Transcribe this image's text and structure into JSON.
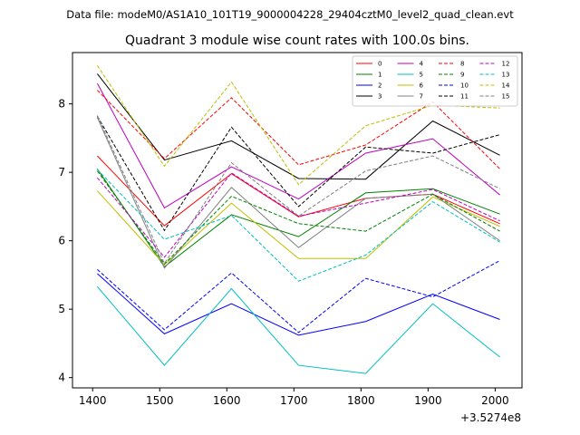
{
  "suptitle": "Data file: modeM0/AS1A10_101T19_9000004228_29404cztM0_level2_quad_clean.evt",
  "chart_data": {
    "type": "line",
    "title": "Quadrant 3 module wise count rates with 100.0s bins.",
    "xlabel": "",
    "ylabel": "",
    "x_offset_label": "+3.5274e8",
    "x": [
      1407,
      1507,
      1607,
      1707,
      1807,
      1907,
      2007
    ],
    "xlim": [
      1370,
      2040
    ],
    "ylim": [
      3.85,
      8.75
    ],
    "x_ticks": [
      1400,
      1500,
      1600,
      1700,
      1800,
      1900,
      2000
    ],
    "y_ticks": [
      4,
      5,
      6,
      7,
      8
    ],
    "grid": false,
    "legend_position": "top-right",
    "legend_columns": 4,
    "series": [
      {
        "name": "0",
        "color": "#ff0000",
        "dash": false,
        "values": [
          7.24,
          6.22,
          6.98,
          6.35,
          6.62,
          6.68,
          6.25
        ]
      },
      {
        "name": "1",
        "color": "#008000",
        "dash": false,
        "values": [
          7.05,
          5.62,
          6.38,
          6.06,
          6.7,
          6.76,
          6.39
        ]
      },
      {
        "name": "2",
        "color": "#0000ff",
        "dash": false,
        "values": [
          5.52,
          4.64,
          5.08,
          4.62,
          4.82,
          5.22,
          4.85
        ]
      },
      {
        "name": "3",
        "color": "#000000",
        "dash": false,
        "values": [
          8.44,
          7.18,
          7.46,
          6.91,
          6.9,
          7.75,
          7.25
        ]
      },
      {
        "name": "4",
        "color": "#bf00bf",
        "dash": false,
        "values": [
          8.3,
          6.48,
          7.08,
          6.61,
          7.28,
          7.49,
          6.67
        ]
      },
      {
        "name": "5",
        "color": "#00bfbf",
        "dash": false,
        "values": [
          5.33,
          4.18,
          5.3,
          4.18,
          4.06,
          5.08,
          4.3
        ]
      },
      {
        "name": "6",
        "color": "#bfbf00",
        "dash": false,
        "values": [
          6.73,
          5.65,
          6.55,
          5.74,
          5.74,
          6.64,
          6.21
        ]
      },
      {
        "name": "7",
        "color": "#808080",
        "dash": false,
        "values": [
          7.8,
          5.6,
          6.78,
          5.9,
          6.62,
          6.68,
          6.0
        ]
      },
      {
        "name": "8",
        "color": "#ff0000",
        "dash": true,
        "values": [
          8.2,
          7.2,
          8.09,
          7.11,
          7.4,
          8.03,
          7.05
        ]
      },
      {
        "name": "9",
        "color": "#008000",
        "dash": true,
        "values": [
          7.02,
          5.66,
          6.65,
          6.25,
          6.14,
          6.68,
          6.14
        ]
      },
      {
        "name": "10",
        "color": "#0000ff",
        "dash": true,
        "values": [
          5.58,
          4.7,
          5.53,
          4.66,
          5.45,
          5.18,
          5.71
        ]
      },
      {
        "name": "11",
        "color": "#000000",
        "dash": true,
        "values": [
          7.82,
          6.15,
          7.66,
          6.5,
          7.37,
          7.28,
          7.55
        ]
      },
      {
        "name": "12",
        "color": "#bf00bf",
        "dash": true,
        "values": [
          6.92,
          5.76,
          6.99,
          6.36,
          6.55,
          6.75,
          6.29
        ]
      },
      {
        "name": "13",
        "color": "#00bfbf",
        "dash": true,
        "values": [
          7.04,
          6.02,
          6.37,
          5.41,
          5.79,
          6.57,
          5.98
        ]
      },
      {
        "name": "14",
        "color": "#bfbf00",
        "dash": true,
        "values": [
          8.56,
          7.09,
          8.32,
          6.82,
          7.68,
          7.98,
          7.94
        ]
      },
      {
        "name": "15",
        "color": "#808080",
        "dash": true,
        "values": [
          7.83,
          5.67,
          7.14,
          6.36,
          7.02,
          7.24,
          6.76
        ]
      }
    ]
  }
}
